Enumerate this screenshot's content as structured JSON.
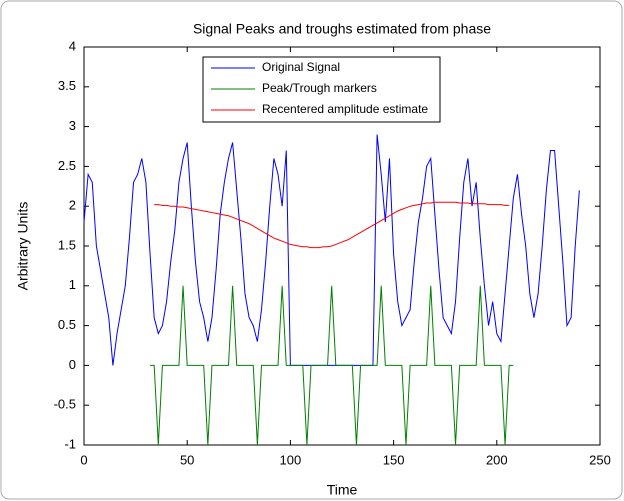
{
  "chart_data": {
    "type": "line",
    "title": "Signal Peaks and troughs estimated from phase",
    "x_label": "Time",
    "y_label": "Arbitrary Units",
    "x": [
      0,
      2,
      4,
      6,
      8,
      10,
      12,
      14,
      16,
      18,
      20,
      22,
      24,
      26,
      28,
      30,
      32,
      34,
      36,
      38,
      40,
      42,
      44,
      46,
      48,
      50,
      52,
      54,
      56,
      58,
      60,
      62,
      64,
      66,
      68,
      70,
      72,
      74,
      76,
      78,
      80,
      82,
      84,
      86,
      88,
      90,
      92,
      94,
      96,
      98,
      100,
      102,
      104,
      106,
      108,
      110,
      112,
      114,
      116,
      118,
      120,
      122,
      124,
      126,
      128,
      130,
      132,
      134,
      136,
      138,
      140,
      142,
      144,
      146,
      148,
      150,
      152,
      154,
      156,
      158,
      160,
      162,
      164,
      166,
      168,
      170,
      172,
      174,
      176,
      178,
      180,
      182,
      184,
      186,
      188,
      190,
      192,
      194,
      196,
      198,
      200,
      202,
      204,
      206,
      208,
      210,
      212,
      214,
      216,
      218,
      220,
      222,
      224,
      226,
      228,
      230,
      232,
      234,
      236,
      238,
      240
    ],
    "series": [
      {
        "name": "Original Signal",
        "color": "#0000ff",
        "values": [
          1.8,
          2.4,
          2.3,
          1.5,
          1.2,
          0.9,
          0.6,
          0,
          0.4,
          0.7,
          1.0,
          1.6,
          2.3,
          2.4,
          2.6,
          2.3,
          1.4,
          0.6,
          0.4,
          0.5,
          0.8,
          1.3,
          1.7,
          2.3,
          2.6,
          2.8,
          2.0,
          1.3,
          0.8,
          0.6,
          0.3,
          0.6,
          1.2,
          1.9,
          2.3,
          2.6,
          2.8,
          2.2,
          1.6,
          0.9,
          0.6,
          0.5,
          0.3,
          0.7,
          1.3,
          2.0,
          2.6,
          2.4,
          2.0,
          2.7,
          0,
          0,
          0,
          0,
          0,
          0,
          0,
          0,
          0,
          0,
          0,
          0,
          0,
          0,
          0,
          0,
          0,
          0,
          0,
          0,
          0,
          2.9,
          2.4,
          1.8,
          2.6,
          1.4,
          0.8,
          0.5,
          0.6,
          0.7,
          1.3,
          1.8,
          2.1,
          2.5,
          2.6,
          1.9,
          1.2,
          0.6,
          0.5,
          0.4,
          0.8,
          1.6,
          2.3,
          2.6,
          2.0,
          2.3,
          1.6,
          1.0,
          0.5,
          0.8,
          0.4,
          0.3,
          0.9,
          1.5,
          2.1,
          2.4,
          1.9,
          1.5,
          0.9,
          0.6,
          0.9,
          1.5,
          2.2,
          2.7,
          2.7,
          2.0,
          1.3,
          0.5,
          0.6,
          1.5,
          2.2
        ]
      },
      {
        "name": "Peak/Trough markers",
        "color": "#008000",
        "values": [
          null,
          null,
          null,
          null,
          null,
          null,
          null,
          null,
          null,
          null,
          null,
          null,
          null,
          null,
          null,
          null,
          0,
          0,
          -1,
          0,
          0,
          0,
          0,
          0,
          1,
          0,
          0,
          0,
          0,
          0,
          -1,
          0,
          0,
          0,
          0,
          0,
          1,
          0,
          0,
          0,
          0,
          0,
          -1,
          0,
          0,
          0,
          0,
          0,
          1,
          0,
          0,
          0,
          0,
          0,
          -1,
          0,
          0,
          0,
          0,
          0,
          1,
          0,
          0,
          0,
          0,
          0,
          -1,
          0,
          0,
          0,
          0,
          0,
          1,
          0,
          0,
          0,
          0,
          0,
          -1,
          0,
          0,
          0,
          0,
          0,
          1,
          0,
          0,
          0,
          0,
          0,
          -1,
          0,
          0,
          0,
          0,
          0,
          1,
          0,
          0,
          0,
          0,
          0,
          -1,
          0,
          0,
          null,
          null,
          null,
          null,
          null,
          null,
          null,
          null,
          null,
          null,
          null,
          null,
          null,
          null,
          null,
          null
        ]
      },
      {
        "name": "Recentered amplitude estimate",
        "color": "#ff0000",
        "values": [
          null,
          null,
          null,
          null,
          null,
          null,
          null,
          null,
          null,
          null,
          null,
          null,
          null,
          null,
          null,
          null,
          null,
          2.02,
          2.02,
          2.01,
          2.01,
          2.0,
          2.0,
          1.99,
          1.99,
          1.98,
          1.97,
          1.96,
          1.95,
          1.94,
          1.93,
          1.92,
          1.91,
          1.9,
          1.89,
          1.88,
          1.86,
          1.84,
          1.82,
          1.8,
          1.78,
          1.75,
          1.72,
          1.69,
          1.66,
          1.63,
          1.6,
          1.58,
          1.56,
          1.54,
          1.52,
          1.51,
          1.5,
          1.49,
          1.49,
          1.48,
          1.48,
          1.48,
          1.49,
          1.49,
          1.5,
          1.52,
          1.54,
          1.56,
          1.58,
          1.61,
          1.64,
          1.67,
          1.7,
          1.73,
          1.76,
          1.79,
          1.82,
          1.85,
          1.88,
          1.91,
          1.94,
          1.96,
          1.98,
          2.0,
          2.01,
          2.02,
          2.03,
          2.04,
          2.04,
          2.05,
          2.05,
          2.05,
          2.05,
          2.05,
          2.05,
          2.04,
          2.04,
          2.04,
          2.03,
          2.03,
          2.03,
          2.03,
          2.02,
          2.02,
          2.02,
          2.02,
          2.01,
          2.01,
          null,
          null,
          null,
          null,
          null,
          null,
          null,
          null,
          null,
          null,
          null,
          null,
          null,
          null,
          null,
          null,
          null
        ]
      }
    ],
    "xlim": [
      0,
      250
    ],
    "xticks": [
      0,
      50,
      100,
      150,
      200,
      250
    ],
    "ylim": [
      -1,
      4
    ],
    "yticks": [
      -1,
      -0.5,
      0,
      0.5,
      1,
      1.5,
      2,
      2.5,
      3,
      3.5,
      4
    ],
    "legend": "top"
  }
}
